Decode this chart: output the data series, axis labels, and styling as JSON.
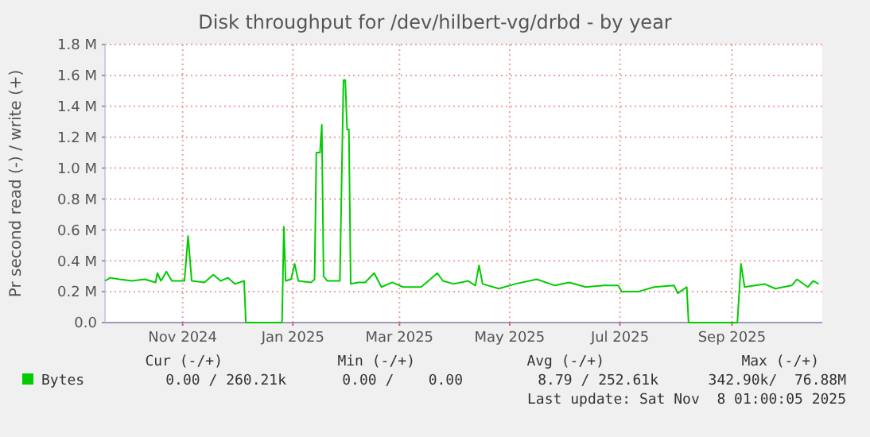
{
  "chart_data": {
    "type": "line",
    "title": "Disk throughput for /dev/hilbert-vg/drbd - by year",
    "ylabel": "Pr second read (-) / write (+)",
    "x": [
      "2024-09-19",
      "2024-09-22",
      "2024-09-27",
      "2024-10-04",
      "2024-10-11",
      "2024-10-17",
      "2024-10-18",
      "2024-10-20",
      "2024-10-23",
      "2024-10-26",
      "2024-11-02",
      "2024-11-04",
      "2024-11-06",
      "2024-11-13",
      "2024-11-18",
      "2024-11-22",
      "2024-11-26",
      "2024-11-30",
      "2024-12-05",
      "2024-12-06",
      "2024-12-26",
      "2024-12-27",
      "2024-12-28",
      "2024-12-31",
      "2025-01-02",
      "2025-01-04",
      "2025-01-11",
      "2025-01-13",
      "2025-01-14",
      "2025-01-16",
      "2025-01-17",
      "2025-01-18",
      "2025-01-20",
      "2025-01-25",
      "2025-01-27",
      "2025-01-29",
      "2025-01-30",
      "2025-01-31",
      "2025-02-01",
      "2025-02-02",
      "2025-02-06",
      "2025-02-10",
      "2025-02-15",
      "2025-02-19",
      "2025-02-25",
      "2025-03-03",
      "2025-03-13",
      "2025-03-22",
      "2025-03-25",
      "2025-03-31",
      "2025-04-08",
      "2025-04-12",
      "2025-04-14",
      "2025-04-16",
      "2025-04-25",
      "2025-05-04",
      "2025-05-16",
      "2025-05-26",
      "2025-06-03",
      "2025-06-12",
      "2025-06-22",
      "2025-06-30",
      "2025-07-02",
      "2025-07-11",
      "2025-07-20",
      "2025-07-31",
      "2025-08-02",
      "2025-08-07",
      "2025-08-08",
      "2025-09-04",
      "2025-09-06",
      "2025-09-08",
      "2025-09-19",
      "2025-09-25",
      "2025-10-04",
      "2025-10-07",
      "2025-10-13",
      "2025-10-16",
      "2025-10-19"
    ],
    "series": [
      {
        "name": "Bytes",
        "color": "#00cc00",
        "values": [
          270000,
          290000,
          280000,
          270000,
          280000,
          260000,
          320000,
          270000,
          330000,
          270000,
          270000,
          560000,
          270000,
          260000,
          310000,
          270000,
          290000,
          250000,
          270000,
          0,
          0,
          620000,
          270000,
          280000,
          380000,
          270000,
          260000,
          280000,
          1100000,
          1100000,
          1280000,
          300000,
          270000,
          270000,
          270000,
          1570000,
          1570000,
          1250000,
          1250000,
          250000,
          260000,
          260000,
          320000,
          230000,
          260000,
          230000,
          230000,
          320000,
          270000,
          250000,
          270000,
          240000,
          370000,
          250000,
          220000,
          250000,
          280000,
          240000,
          260000,
          230000,
          240000,
          240000,
          200000,
          200000,
          230000,
          240000,
          190000,
          230000,
          0,
          0,
          380000,
          230000,
          250000,
          220000,
          240000,
          280000,
          230000,
          270000,
          250000
        ]
      }
    ],
    "xlim": [
      "2024-09-19",
      "2025-10-21"
    ],
    "xticks": [
      {
        "value": "2024-11-01",
        "label": "Nov 2024"
      },
      {
        "value": "2025-01-01",
        "label": "Jan 2025"
      },
      {
        "value": "2025-03-01",
        "label": "Mar 2025"
      },
      {
        "value": "2025-05-01",
        "label": "May 2025"
      },
      {
        "value": "2025-07-01",
        "label": "Jul 2025"
      },
      {
        "value": "2025-09-01",
        "label": "Sep 2025"
      }
    ],
    "ylim": [
      0,
      1800000
    ],
    "yticks": [
      {
        "value": 0,
        "label": "0.0"
      },
      {
        "value": 200000,
        "label": "0.2 M"
      },
      {
        "value": 400000,
        "label": "0.4 M"
      },
      {
        "value": 600000,
        "label": "0.6 M"
      },
      {
        "value": 800000,
        "label": "0.8 M"
      },
      {
        "value": 1000000,
        "label": "1.0 M"
      },
      {
        "value": 1200000,
        "label": "1.2 M"
      },
      {
        "value": 1400000,
        "label": "1.4 M"
      },
      {
        "value": 1600000,
        "label": "1.6 M"
      },
      {
        "value": 1800000,
        "label": "1.8 M"
      }
    ],
    "grid": true,
    "legend": "bottom left",
    "marker": "none",
    "line_style": "solid",
    "annotations": [
      "Cur (-/+)",
      "Min (-/+)",
      "Avg (-/+)",
      "Max (-/+)",
      "0.00 / 260.21k",
      "0.00 /    0.00",
      "8.79 / 252.61k",
      "342.90k/  76.88M",
      "Last update: Sat Nov  8 01:00:05 2025"
    ]
  }
}
